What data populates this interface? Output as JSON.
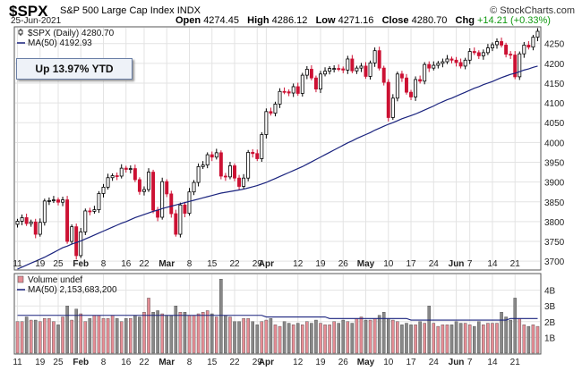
{
  "header": {
    "symbol": "$SPX",
    "description": "S&P 500 Large Cap Index",
    "exchange": "INDX",
    "date": "25-Jun-2021",
    "open_label": "Open",
    "open": "4274.45",
    "high_label": "High",
    "high": "4286.12",
    "low_label": "Low",
    "low": "4271.16",
    "close_label": "Close",
    "close": "4280.70",
    "chg_label": "Chg",
    "chg": "+14.21 (+0.33%)",
    "watermark": "© StockCharts.com"
  },
  "annotation": "Up 13.97% YTD",
  "colors": {
    "up": "#000000",
    "down": "#cc1133",
    "ma": "#1a237e",
    "vol_up": "#e58d95",
    "vol_down": "#888888"
  },
  "chart_data": [
    {
      "type": "candlestick",
      "legend": [
        {
          "label": "$SPX (Daily) 4280.70",
          "style": "candle"
        },
        {
          "label": "MA(50) 4192.93",
          "style": "line"
        }
      ],
      "ylim": [
        3680,
        4290
      ],
      "yticks": [
        3700,
        3750,
        3800,
        3850,
        3900,
        3950,
        4000,
        4050,
        4100,
        4150,
        4200,
        4250
      ],
      "xtick_labels": [
        "11",
        "19",
        "25",
        "Feb",
        "8",
        "16",
        "22",
        "Mar",
        "8",
        "15",
        "22",
        "29",
        "Apr",
        "12",
        "19",
        "26",
        "May",
        "10",
        "17",
        "24",
        "Jun",
        "7",
        "14",
        "21"
      ],
      "xtick_index": [
        0,
        5,
        9,
        14,
        19,
        24,
        28,
        33,
        38,
        43,
        48,
        53,
        55,
        62,
        67,
        72,
        77,
        82,
        87,
        92,
        97,
        100,
        105,
        110
      ],
      "close": [
        3801,
        3810,
        3795,
        3799,
        3768,
        3798,
        3852,
        3853,
        3855,
        3849,
        3855,
        3750,
        3787,
        3714,
        3774,
        3827,
        3826,
        3830,
        3871,
        3887,
        3911,
        3916,
        3915,
        3935,
        3932,
        3934,
        3906,
        3876,
        3881,
        3925,
        3829,
        3811,
        3901,
        3870,
        3820,
        3768,
        3842,
        3821,
        3875,
        3899,
        3939,
        3943,
        3969,
        3963,
        3974,
        3915,
        3913,
        3941,
        3910,
        3889,
        3910,
        3975,
        3972,
        3959,
        4020,
        4078,
        4074,
        4097,
        4129,
        4128,
        4125,
        4141,
        4124,
        4170,
        4185,
        4163,
        4135,
        4173,
        4180,
        4187,
        4187,
        4186,
        4183,
        4211,
        4181,
        4188,
        4193,
        4167,
        4201,
        4232,
        4188,
        4152,
        4063,
        4112,
        4173,
        4163,
        4127,
        4115,
        4159,
        4155,
        4197,
        4188,
        4195,
        4200,
        4204,
        4211,
        4208,
        4202,
        4193,
        4208,
        4230,
        4227,
        4219,
        4227,
        4239,
        4247,
        4255,
        4246,
        4223,
        4221,
        4166,
        4224,
        4246,
        4241,
        4266,
        4281
      ],
      "ma50": [
        3680,
        3685,
        3690,
        3695,
        3700,
        3705,
        3710,
        3716,
        3722,
        3728,
        3734,
        3738,
        3743,
        3747,
        3751,
        3756,
        3761,
        3766,
        3771,
        3776,
        3781,
        3786,
        3791,
        3796,
        3800,
        3805,
        3810,
        3814,
        3818,
        3822,
        3826,
        3829,
        3833,
        3836,
        3839,
        3842,
        3845,
        3848,
        3851,
        3854,
        3857,
        3860,
        3863,
        3866,
        3869,
        3872,
        3874,
        3876,
        3878,
        3880,
        3882,
        3885,
        3888,
        3891,
        3895,
        3899,
        3904,
        3909,
        3914,
        3919,
        3924,
        3929,
        3934,
        3939,
        3945,
        3951,
        3957,
        3963,
        3969,
        3975,
        3981,
        3987,
        3993,
        3999,
        4004,
        4010,
        4015,
        4020,
        4025,
        4031,
        4036,
        4041,
        4046,
        4050,
        4055,
        4060,
        4064,
        4068,
        4072,
        4077,
        4082,
        4087,
        4092,
        4098,
        4103,
        4108,
        4112,
        4117,
        4122,
        4127,
        4132,
        4137,
        4141,
        4146,
        4150,
        4154,
        4159,
        4164,
        4168,
        4172,
        4175,
        4179,
        4183,
        4186,
        4190,
        4193
      ]
    },
    {
      "type": "bar",
      "legend": [
        {
          "label": "Volume undef",
          "style": "bar"
        },
        {
          "label": "MA(50) 2,153,683,200",
          "style": "line"
        }
      ],
      "ylim": [
        0,
        5
      ],
      "yticks": [
        1,
        2,
        3,
        4
      ],
      "ytick_labels": [
        "1B",
        "2B",
        "3B",
        "4B"
      ],
      "volume_billions": [
        2.0,
        2.0,
        2.3,
        2.1,
        2.1,
        2.0,
        2.2,
        2.2,
        2.0,
        1.8,
        2.3,
        3.0,
        2.1,
        2.8,
        2.5,
        2.0,
        2.2,
        2.4,
        2.4,
        2.2,
        2.2,
        2.4,
        2.2,
        2.0,
        2.2,
        2.2,
        2.4,
        2.3,
        2.6,
        3.5,
        2.6,
        2.7,
        2.5,
        2.4,
        2.4,
        3.0,
        2.6,
        2.6,
        2.4,
        2.4,
        2.5,
        2.6,
        2.7,
        2.5,
        2.3,
        4.7,
        2.4,
        2.3,
        2.0,
        2.0,
        2.2,
        2.2,
        2.0,
        1.8,
        2.0,
        2.1,
        2.2,
        1.8,
        1.7,
        2.0,
        1.9,
        1.8,
        1.9,
        1.8,
        2.0,
        1.9,
        2.1,
        1.9,
        1.8,
        1.8,
        2.0,
        1.9,
        2.1,
        2.0,
        1.9,
        2.2,
        2.3,
        2.1,
        2.1,
        2.2,
        2.4,
        2.6,
        2.2,
        2.1,
        2.0,
        1.8,
        1.9,
        1.8,
        1.8,
        2.0,
        1.9,
        3.0,
        1.9,
        1.7,
        1.8,
        1.8,
        1.8,
        2.0,
        1.9,
        1.9,
        1.8,
        1.7,
        2.0,
        1.8,
        1.9,
        1.9,
        1.9,
        2.6,
        2.3,
        2.1,
        3.5,
        2.2,
        1.8,
        1.7,
        1.8,
        1.7
      ],
      "ma50_billions": [
        2.4,
        2.4,
        2.4,
        2.4,
        2.4,
        2.4,
        2.4,
        2.4,
        2.4,
        2.4,
        2.4,
        2.4,
        2.4,
        2.4,
        2.4,
        2.4,
        2.4,
        2.4,
        2.4,
        2.4,
        2.4,
        2.4,
        2.4,
        2.4,
        2.4,
        2.4,
        2.4,
        2.4,
        2.4,
        2.4,
        2.4,
        2.4,
        2.4,
        2.4,
        2.4,
        2.4,
        2.4,
        2.4,
        2.4,
        2.4,
        2.4,
        2.4,
        2.4,
        2.4,
        2.4,
        2.4,
        2.4,
        2.4,
        2.4,
        2.4,
        2.4,
        2.4,
        2.4,
        2.4,
        2.4,
        2.3,
        2.3,
        2.3,
        2.3,
        2.3,
        2.3,
        2.3,
        2.3,
        2.3,
        2.3,
        2.3,
        2.3,
        2.3,
        2.3,
        2.2,
        2.2,
        2.2,
        2.2,
        2.2,
        2.2,
        2.2,
        2.2,
        2.2,
        2.2,
        2.2,
        2.2,
        2.2,
        2.2,
        2.2,
        2.2,
        2.2,
        2.2,
        2.1,
        2.1,
        2.1,
        2.1,
        2.1,
        2.1,
        2.1,
        2.1,
        2.1,
        2.1,
        2.1,
        2.1,
        2.1,
        2.1,
        2.1,
        2.1,
        2.1,
        2.1,
        2.1,
        2.1,
        2.1,
        2.1,
        2.2,
        2.2,
        2.2,
        2.2,
        2.2,
        2.2,
        2.2
      ]
    }
  ]
}
